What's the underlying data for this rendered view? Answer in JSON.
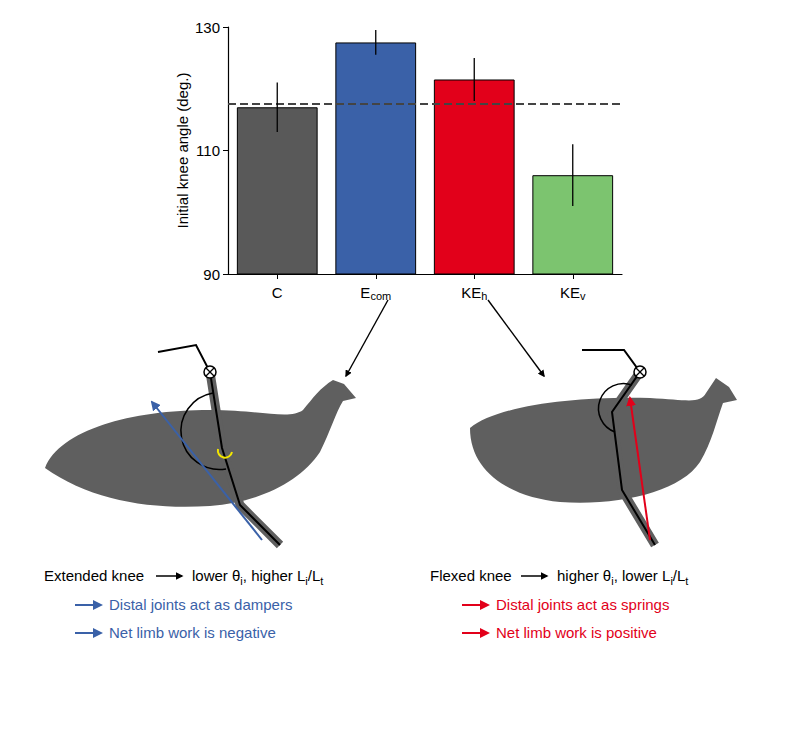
{
  "chart_data": {
    "type": "bar",
    "y_label": "Initial knee angle (deg.)",
    "categories": [
      "C",
      "Ecom",
      "KEh",
      "KEv"
    ],
    "category_subscripts": [
      "",
      "com",
      "h",
      "v"
    ],
    "values": [
      117,
      127.5,
      121.5,
      106
    ],
    "errors": [
      4,
      2,
      3.5,
      5
    ],
    "colors": [
      "#595959",
      "#3a61a8",
      "#e2001a",
      "#7cc46f"
    ],
    "reference_line": 117.5,
    "ylim": [
      90,
      130
    ],
    "yticks": [
      90,
      110,
      130
    ],
    "grid": false
  },
  "diagram": {
    "left": {
      "condition": "Extended knee",
      "effect": [
        {
          "t": "lower θ"
        },
        {
          "t": "i",
          "sub": true
        },
        {
          "t": ", higher L"
        },
        {
          "t": "i",
          "sub": true
        },
        {
          "t": "/L"
        },
        {
          "t": "t",
          "sub": true
        }
      ],
      "notes": [
        "Distal joints act as dampers",
        "Net limb work is negative"
      ],
      "color": "#3a61a8"
    },
    "right": {
      "condition": "Flexed knee",
      "effect": [
        {
          "t": "higher θ"
        },
        {
          "t": "i",
          "sub": true
        },
        {
          "t": ", lower L"
        },
        {
          "t": "i",
          "sub": true
        },
        {
          "t": "/L"
        },
        {
          "t": "t",
          "sub": true
        }
      ],
      "notes": [
        "Distal joints act as springs",
        "Net limb work is positive"
      ],
      "color": "#e2001a"
    }
  }
}
